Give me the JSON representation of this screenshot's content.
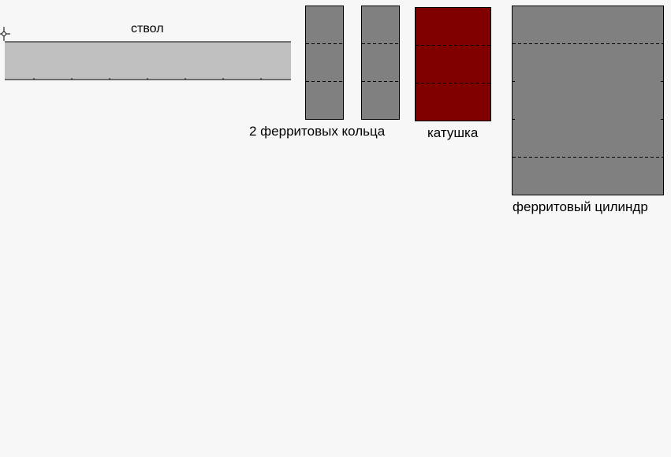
{
  "labels": {
    "barrel": "ствол",
    "rings": "2 ферритовых кольца",
    "coil": "катушка",
    "cylinder": "ферритовый цилиндр"
  },
  "colors": {
    "background": "#f7f7f7",
    "barrel_fill": "#c0c0c0",
    "ferrite_fill": "#808080",
    "coil_fill": "#800000",
    "outline": "#000000"
  }
}
